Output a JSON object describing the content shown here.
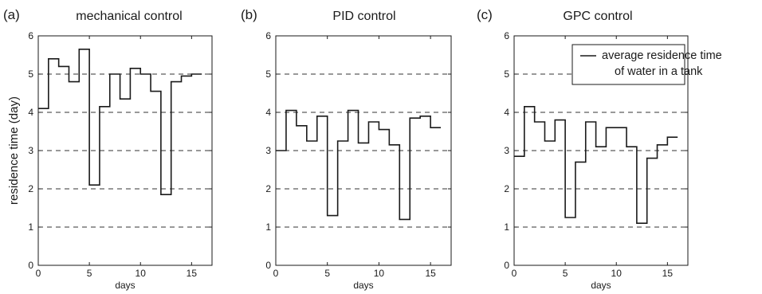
{
  "chart_data": [
    {
      "type": "line",
      "panel_label": "(a)",
      "title": "mechanical control",
      "xlabel": "days",
      "ylabel": "residence time (day)",
      "xlim": [
        0,
        17
      ],
      "ylim": [
        0,
        6
      ],
      "xticks": [
        0,
        5,
        10,
        15
      ],
      "yticks": [
        0,
        1,
        2,
        3,
        4,
        5,
        6
      ],
      "grid": "horizontal dashed",
      "step": "post",
      "series": [
        {
          "x": [
            0,
            1,
            2,
            3,
            4,
            5,
            6,
            7,
            8,
            9,
            10,
            11,
            12,
            13,
            14,
            15,
            16
          ],
          "values": [
            4.1,
            5.4,
            5.2,
            4.8,
            5.65,
            2.1,
            4.15,
            5.0,
            4.35,
            5.15,
            5.0,
            4.55,
            1.85,
            4.8,
            4.95,
            5.0,
            5.0
          ]
        }
      ]
    },
    {
      "type": "line",
      "panel_label": "(b)",
      "title": "PID control",
      "xlabel": "days",
      "ylabel": "",
      "xlim": [
        0,
        17
      ],
      "ylim": [
        0,
        6
      ],
      "xticks": [
        0,
        5,
        10,
        15
      ],
      "yticks": [
        0,
        1,
        2,
        3,
        4,
        5,
        6
      ],
      "grid": "horizontal dashed",
      "step": "post",
      "series": [
        {
          "x": [
            0,
            1,
            2,
            3,
            4,
            5,
            6,
            7,
            8,
            9,
            10,
            11,
            12,
            13,
            14,
            15,
            16
          ],
          "values": [
            3.0,
            4.05,
            3.65,
            3.25,
            3.9,
            1.3,
            3.25,
            4.05,
            3.2,
            3.75,
            3.55,
            3.15,
            1.2,
            3.85,
            3.9,
            3.6,
            3.6
          ]
        }
      ]
    },
    {
      "type": "line",
      "panel_label": "(c)",
      "title": "GPC control",
      "xlabel": "days",
      "ylabel": "",
      "xlim": [
        0,
        17
      ],
      "ylim": [
        0,
        6
      ],
      "xticks": [
        0,
        5,
        10,
        15
      ],
      "yticks": [
        0,
        1,
        2,
        3,
        4,
        5,
        6
      ],
      "grid": "horizontal dashed",
      "step": "post",
      "legend": {
        "position": "top-right",
        "lines": [
          "average residence time",
          "of water in a tank"
        ]
      },
      "series": [
        {
          "name": "average residence time of water in a tank",
          "x": [
            0,
            1,
            2,
            3,
            4,
            5,
            6,
            7,
            8,
            9,
            10,
            11,
            12,
            13,
            14,
            15,
            16
          ],
          "values": [
            2.85,
            4.15,
            3.75,
            3.25,
            3.8,
            1.25,
            2.7,
            3.75,
            3.1,
            3.6,
            3.6,
            3.1,
            1.1,
            2.8,
            3.15,
            3.35,
            3.35
          ]
        }
      ]
    }
  ],
  "colors": {
    "line": "#1a1a1a",
    "grid": "#333333",
    "axes": "#1a1a1a",
    "background": "#ffffff"
  }
}
